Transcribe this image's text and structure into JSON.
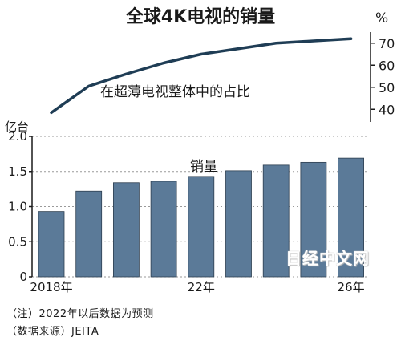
{
  "chart_data": [
    {
      "type": "line",
      "title": "全球4K电视的销量",
      "unit": "%",
      "series": [
        {
          "name": "在超薄电视整体中的占比",
          "values": [
            38.5,
            50.5,
            56.0,
            61.0,
            65.0,
            67.5,
            70.0,
            71.0,
            72.0
          ]
        }
      ],
      "x": [
        2018,
        2019,
        2020,
        2021,
        2022,
        2023,
        2024,
        2025,
        2026
      ],
      "ylim": [
        35,
        75
      ],
      "yticks": [
        "40",
        "50",
        "60",
        "70"
      ],
      "color": "#1f3d55"
    },
    {
      "type": "bar",
      "title": "销量",
      "unit": "亿台",
      "categories": [
        2018,
        2019,
        2020,
        2021,
        2022,
        2023,
        2024,
        2025,
        2026
      ],
      "xtick_labels": [
        "2018年",
        "22年",
        "26年"
      ],
      "values": [
        0.93,
        1.22,
        1.34,
        1.36,
        1.43,
        1.51,
        1.59,
        1.63,
        1.69
      ],
      "ylim": [
        0,
        2.0
      ],
      "yticks": [
        "0",
        "0.5",
        "1.0",
        "1.5",
        "2.0"
      ],
      "grid": true,
      "color": "#5b7a98"
    }
  ],
  "notes": [
    "（注）2022年以后数据为预测",
    "（数据来源）JEITA"
  ],
  "watermark": "日经中文网"
}
